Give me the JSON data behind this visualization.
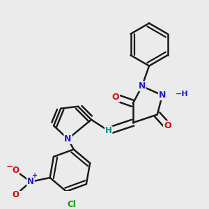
{
  "background_color": "#ebebeb",
  "bond_color": "#1a1a1a",
  "bond_width": 1.8,
  "atom_colors": {
    "N": "#1a1acc",
    "O": "#dd0000",
    "Cl": "#009900",
    "H": "#008888",
    "C": "#1a1a1a"
  },
  "figsize": [
    3.0,
    3.0
  ],
  "dpi": 100
}
